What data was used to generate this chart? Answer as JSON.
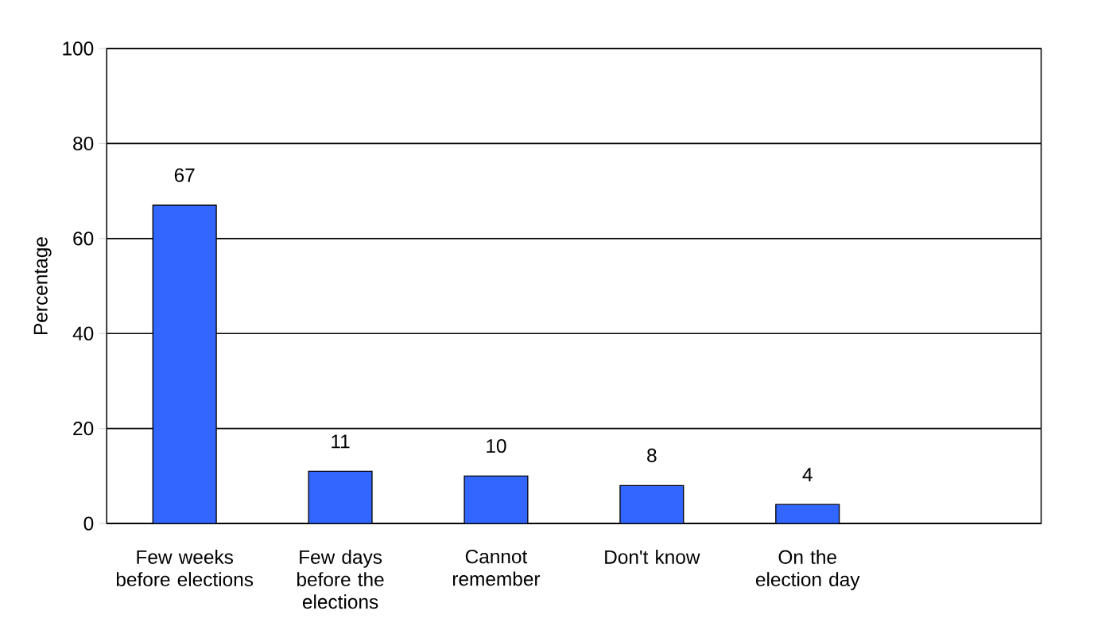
{
  "chart_data": {
    "type": "bar",
    "ylabel": "Percentage",
    "categories": [
      "Few weeks before elections",
      "Few days before the elections",
      "Cannot remember",
      "Don't know",
      "On the election day",
      null
    ],
    "values": [
      67,
      11,
      10,
      8,
      4,
      null
    ],
    "color": "#3366ff",
    "ylim": [
      0,
      100
    ],
    "yticks": [
      0,
      20,
      40,
      60,
      80,
      100
    ],
    "grid": "y",
    "data_labels": true
  }
}
